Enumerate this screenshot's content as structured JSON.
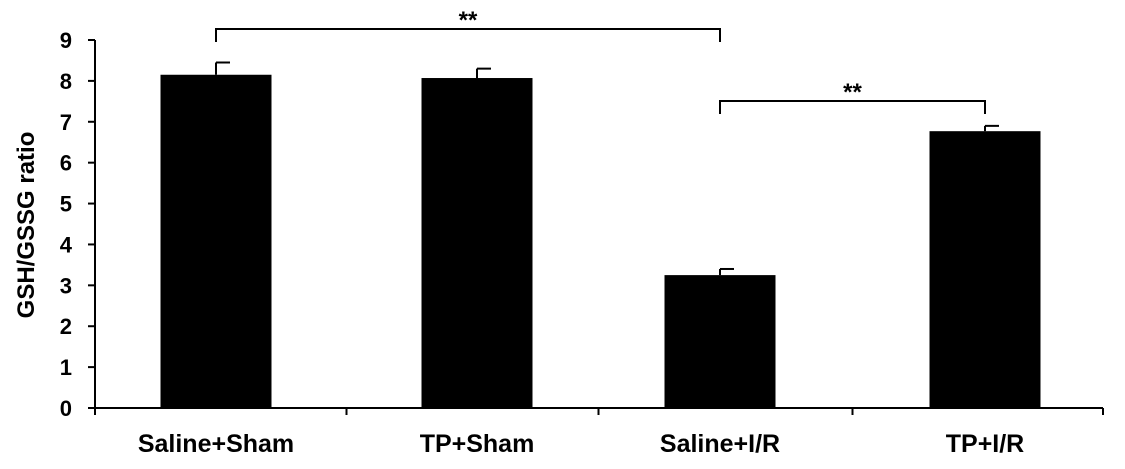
{
  "chart_data": {
    "type": "bar",
    "categories": [
      "Saline+Sham",
      "TP+Sham",
      "Saline+I/R",
      "TP+I/R"
    ],
    "values": [
      8.15,
      8.07,
      3.25,
      6.77
    ],
    "error_bars": [
      0.3,
      0.23,
      0.15,
      0.13
    ],
    "ylabel": "GSH/GSSG ratio",
    "xlabel": "",
    "ylim": [
      0,
      9
    ],
    "yticks": [
      "0",
      "1",
      "2",
      "3",
      "4",
      "5",
      "6",
      "7",
      "8",
      "9"
    ],
    "grid": false,
    "bar_color": "#000000",
    "significance": [
      {
        "from": 0,
        "to": 2,
        "label": "**"
      },
      {
        "from": 2,
        "to": 3,
        "label": "**"
      }
    ]
  }
}
